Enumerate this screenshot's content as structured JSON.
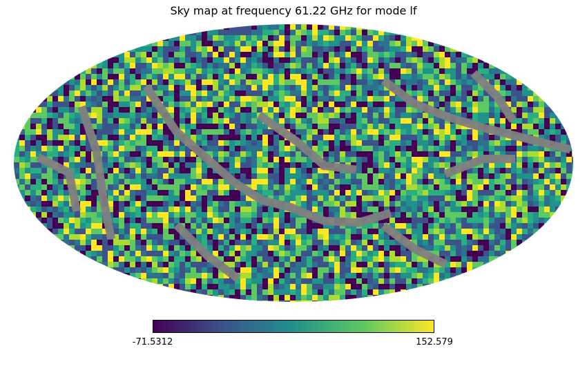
{
  "chart_data": {
    "type": "heatmap",
    "projection": "mollweide",
    "title": "Sky map at frequency 61.22 GHz for mode lf",
    "colormap": "viridis",
    "colormap_stops": [
      "#440154",
      "#3b528b",
      "#21918c",
      "#5ec962",
      "#fde725"
    ],
    "masked_color": "#808080",
    "value_range": [
      -71.5312,
      152.579
    ],
    "colorbar": {
      "min_label": "-71.5312",
      "max_label": "152.579",
      "orientation": "horizontal",
      "placement": "bottom"
    },
    "data_description_values": {
      "distribution": "random noise-like pixel values",
      "masked_bands": "gray diagonal stripes of unobserved pixels"
    }
  }
}
